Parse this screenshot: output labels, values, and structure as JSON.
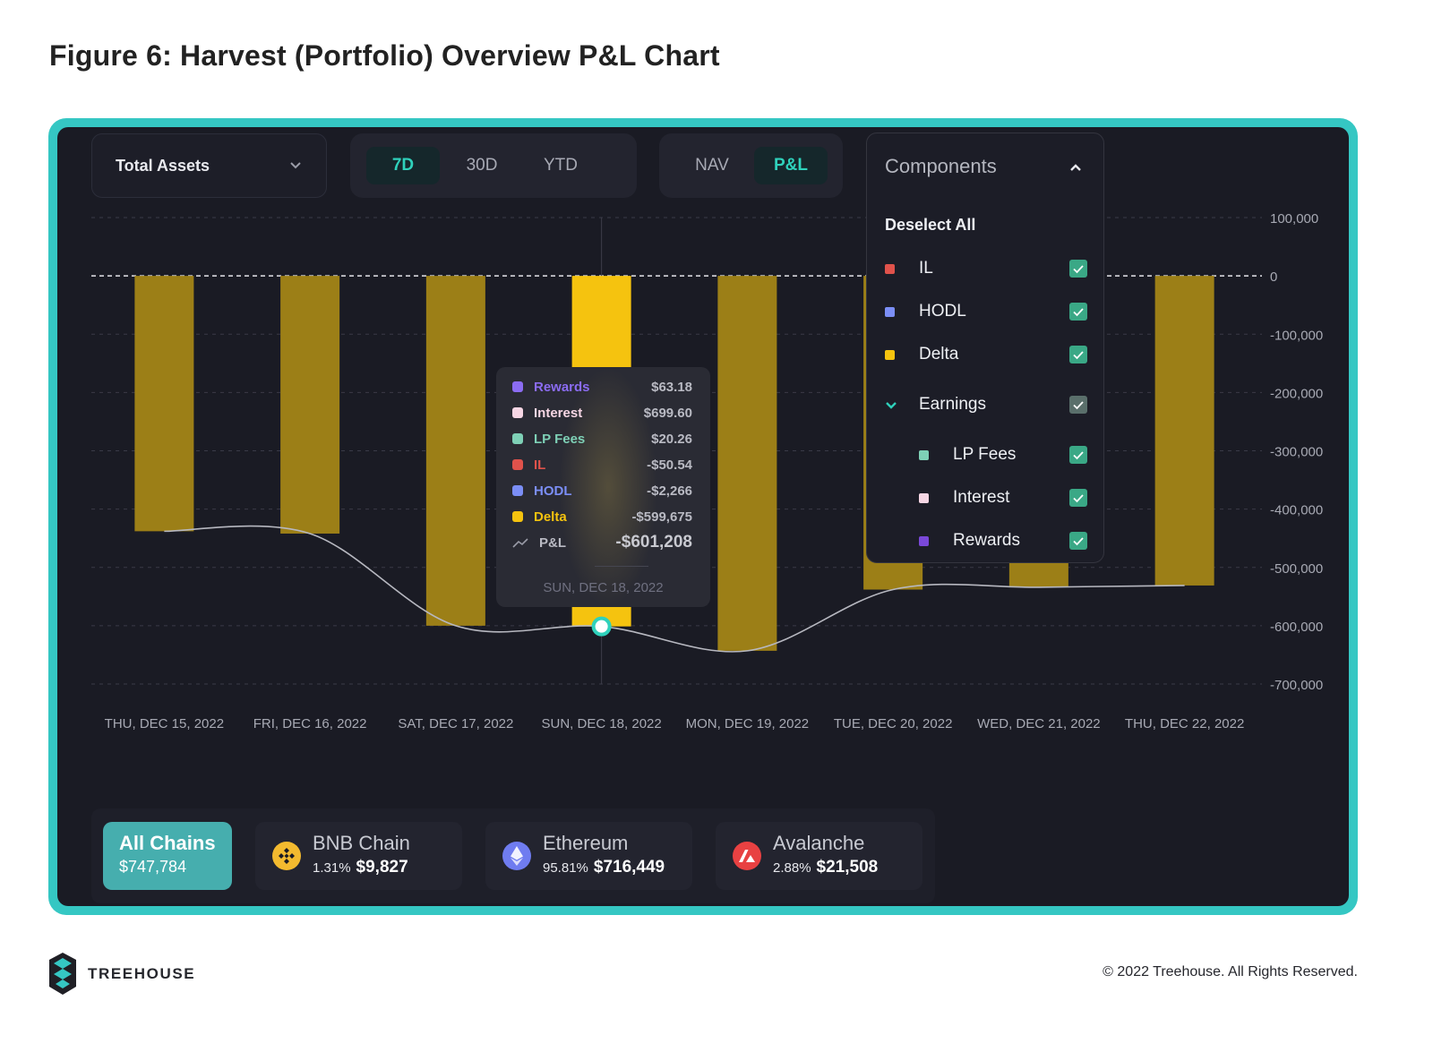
{
  "figure_title": "Figure 6: Harvest (Portfolio) Overview P&L Chart",
  "controls": {
    "dropdown_label": "Total Assets",
    "range_options": [
      "7D",
      "30D",
      "YTD"
    ],
    "range_active": "7D",
    "mode_options": [
      "NAV",
      "P&L"
    ],
    "mode_active": "P&L"
  },
  "colors": {
    "frame": "#35c7c3",
    "panel": "#1a1b24",
    "bar": "#9c7f17",
    "bar_highlight": "#f5c30f",
    "line": "#b7b8c0",
    "accent": "#2fd1bb"
  },
  "tooltip": {
    "rows": [
      {
        "name": "Rewards",
        "value": "$63.18",
        "color": "#8b6cf2"
      },
      {
        "name": "Interest",
        "value": "$699.60",
        "color": "#f6d6e4"
      },
      {
        "name": "LP Fees",
        "value": "$20.26",
        "color": "#7ed0b6"
      },
      {
        "name": "IL",
        "value": "-$50.54",
        "color": "#e0524b"
      },
      {
        "name": "HODL",
        "value": "-$2,266",
        "color": "#7b8ef6"
      },
      {
        "name": "Delta",
        "value": "-$599,675",
        "color": "#f5c30f"
      }
    ],
    "pl_label": "P&L",
    "pl_value": "-$601,208",
    "date": "SUN, DEC 18, 2022"
  },
  "components": {
    "title": "Components",
    "deselect_label": "Deselect All",
    "items": [
      {
        "name": "IL",
        "color": "#e0524b",
        "checked": true
      },
      {
        "name": "HODL",
        "color": "#7b8ef6",
        "checked": true
      },
      {
        "name": "Delta",
        "color": "#f5c30f",
        "checked": true
      },
      {
        "name": "Earnings",
        "color": "#2fd1bb",
        "checked": true
      },
      {
        "name": "LP Fees",
        "color": "#7ed0b6",
        "checked": true
      },
      {
        "name": "Interest",
        "color": "#f6d6e4",
        "checked": true
      },
      {
        "name": "Rewards",
        "color": "#7a48d8",
        "checked": true
      }
    ]
  },
  "chart_data": {
    "type": "bar",
    "categories": [
      "THU, DEC 15, 2022",
      "FRI, DEC 16, 2022",
      "SAT, DEC 17, 2022",
      "SUN, DEC 18, 2022",
      "MON, DEC 19, 2022",
      "TUE, DEC 20, 2022",
      "WED, DEC 21, 2022",
      "THU, DEC 22, 2022"
    ],
    "series": [
      {
        "values": [
          -438000,
          -442000,
          -600000,
          -601208,
          -643000,
          -538000,
          -534000,
          -531000
        ]
      }
    ],
    "line_values": [
      -438000,
      -442000,
      -600000,
      -601208,
      -643000,
      -538000,
      -534000,
      -531000
    ],
    "highlighted_index": 3,
    "ylim": [
      -700000,
      100000
    ],
    "yticks": [
      100000,
      0,
      -100000,
      -200000,
      -300000,
      -400000,
      -500000,
      -600000,
      -700000
    ],
    "ytick_labels": [
      "100,000",
      "0",
      "-100,000",
      "-200,000",
      "-300,000",
      "-400,000",
      "-500,000",
      "-600,000",
      "-700,000"
    ],
    "grid": true,
    "xlabel": "",
    "ylabel": ""
  },
  "chains": [
    {
      "name": "All Chains",
      "value": "$747,784",
      "pct": "",
      "icon": "none",
      "active": true
    },
    {
      "name": "BNB Chain",
      "pct": "1.31%",
      "value": "$9,827",
      "icon": "bnb-icon",
      "color": "#f3ba2f",
      "active": false
    },
    {
      "name": "Ethereum",
      "pct": "95.81%",
      "value": "$716,449",
      "icon": "ethereum-icon",
      "color": "#6f7cf0",
      "active": false
    },
    {
      "name": "Avalanche",
      "pct": "2.88%",
      "value": "$21,508",
      "icon": "avalanche-icon",
      "color": "#e84142",
      "active": false
    }
  ],
  "footer": {
    "brand": "TREEHOUSE",
    "copyright": "© 2022 Treehouse. All Rights Reserved."
  }
}
